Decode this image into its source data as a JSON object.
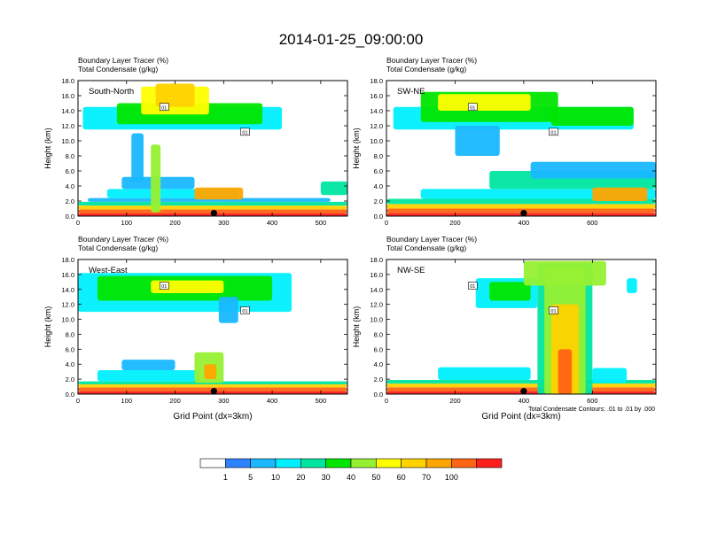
{
  "figure": {
    "title": "2014-01-25_09:00:00",
    "contour_note": "Total Condensate Contours: .01 to .01 by .000",
    "contour_label": "01"
  },
  "colorbar": {
    "labels": [
      "1",
      "5",
      "10",
      "20",
      "30",
      "40",
      "50",
      "60",
      "70",
      "100"
    ],
    "colors": [
      "#ffffff",
      "#2d82ff",
      "#19b8ff",
      "#00f0ff",
      "#00e6a0",
      "#00e600",
      "#96f032",
      "#ffff00",
      "#ffd200",
      "#ffa500",
      "#ff6414",
      "#ff1e1e"
    ]
  },
  "chart_data": [
    {
      "type": "heatmap",
      "name": "South-North",
      "title_line1": "Boundary Layer Tracer   (%)",
      "title_line2": "Total Condensate   (g/kg)",
      "xlabel": "",
      "ylabel": "Height (km)",
      "xlim": [
        0,
        555
      ],
      "ylim": [
        0,
        18
      ],
      "xticks": [
        "0",
        "100",
        "200",
        "300",
        "400",
        "500"
      ],
      "xtick_values": [
        0,
        100,
        200,
        300,
        400,
        500
      ],
      "yticks": [
        "0.0",
        "2.0",
        "4.0",
        "6.0",
        "8.0",
        "10.0",
        "12.0",
        "14.0",
        "16.0",
        "18.0"
      ],
      "ytick_values": [
        0,
        2,
        4,
        6,
        8,
        10,
        12,
        14,
        16,
        18
      ],
      "marker_x": 280,
      "layers": [
        {
          "x0": 0,
          "x1": 555,
          "z0": 0,
          "z1": 0.35,
          "level": 11
        },
        {
          "x0": 0,
          "x1": 555,
          "z0": 0.35,
          "z1": 0.9,
          "level": 10
        },
        {
          "x0": 0,
          "x1": 555,
          "z0": 0.9,
          "z1": 1.4,
          "level": 8
        },
        {
          "x0": 0,
          "x1": 555,
          "z0": 1.4,
          "z1": 1.9,
          "level": 4
        },
        {
          "x0": 20,
          "x1": 520,
          "z0": 1.9,
          "z1": 2.4,
          "level": 2
        },
        {
          "x0": 60,
          "x1": 330,
          "z0": 2.4,
          "z1": 3.6,
          "level": 3
        },
        {
          "x0": 90,
          "x1": 240,
          "z0": 3.6,
          "z1": 5.2,
          "level": 2
        },
        {
          "x0": 240,
          "x1": 340,
          "z0": 2.2,
          "z1": 3.8,
          "level": 9
        },
        {
          "x0": 150,
          "x1": 170,
          "z0": 0.5,
          "z1": 9.5,
          "level": 6
        },
        {
          "x0": 110,
          "x1": 135,
          "z0": 4.5,
          "z1": 11,
          "level": 2
        },
        {
          "x0": 500,
          "x1": 555,
          "z0": 2.8,
          "z1": 4.6,
          "level": 4
        },
        {
          "x0": 10,
          "x1": 420,
          "z0": 11.5,
          "z1": 14.5,
          "level": 3
        },
        {
          "x0": 80,
          "x1": 380,
          "z0": 12.2,
          "z1": 15.0,
          "level": 5
        },
        {
          "x0": 130,
          "x1": 270,
          "z0": 13.5,
          "z1": 17.2,
          "level": 7
        },
        {
          "x0": 160,
          "x1": 240,
          "z0": 14.5,
          "z1": 17.6,
          "level": 8
        }
      ]
    },
    {
      "type": "heatmap",
      "name": "SW-NE",
      "title_line1": "Boundary Layer Tracer   (%)",
      "title_line2": "Total Condensate   (g/kg)",
      "xlabel": "",
      "ylabel": "Height (km)",
      "xlim": [
        0,
        785
      ],
      "ylim": [
        0,
        18
      ],
      "xticks": [
        "0",
        "200",
        "400",
        "600"
      ],
      "xtick_values": [
        0,
        200,
        400,
        600
      ],
      "yticks": [
        "0.0",
        "2.0",
        "4.0",
        "6.0",
        "8.0",
        "10.0",
        "12.0",
        "14.0",
        "16.0",
        "18.0"
      ],
      "ytick_values": [
        0,
        2,
        4,
        6,
        8,
        10,
        12,
        14,
        16,
        18
      ],
      "marker_x": 400,
      "layers": [
        {
          "x0": 0,
          "x1": 785,
          "z0": 0,
          "z1": 0.4,
          "level": 11
        },
        {
          "x0": 0,
          "x1": 785,
          "z0": 0.4,
          "z1": 1.0,
          "level": 10
        },
        {
          "x0": 0,
          "x1": 785,
          "z0": 1.0,
          "z1": 1.6,
          "level": 8
        },
        {
          "x0": 0,
          "x1": 785,
          "z0": 1.6,
          "z1": 2.3,
          "level": 4
        },
        {
          "x0": 100,
          "x1": 785,
          "z0": 2.3,
          "z1": 3.6,
          "level": 3
        },
        {
          "x0": 300,
          "x1": 785,
          "z0": 3.6,
          "z1": 6.0,
          "level": 4
        },
        {
          "x0": 420,
          "x1": 785,
          "z0": 5.0,
          "z1": 7.2,
          "level": 2
        },
        {
          "x0": 600,
          "x1": 760,
          "z0": 2.0,
          "z1": 3.8,
          "level": 9
        },
        {
          "x0": 20,
          "x1": 720,
          "z0": 11.5,
          "z1": 14.5,
          "level": 3
        },
        {
          "x0": 100,
          "x1": 500,
          "z0": 12.5,
          "z1": 16.5,
          "level": 5
        },
        {
          "x0": 150,
          "x1": 420,
          "z0": 14.0,
          "z1": 16.2,
          "level": 7
        },
        {
          "x0": 480,
          "x1": 720,
          "z0": 12.0,
          "z1": 14.5,
          "level": 5
        },
        {
          "x0": 200,
          "x1": 330,
          "z0": 8.0,
          "z1": 12.0,
          "level": 2
        }
      ]
    },
    {
      "type": "heatmap",
      "name": "West-East",
      "title_line1": "Boundary Layer Tracer   (%)",
      "title_line2": "Total Condensate   (g/kg)",
      "xlabel": "Grid Point (dx=3km)",
      "ylabel": "Height (km)",
      "xlim": [
        0,
        555
      ],
      "ylim": [
        0,
        18
      ],
      "xticks": [
        "0",
        "100",
        "200",
        "300",
        "400",
        "500"
      ],
      "xtick_values": [
        0,
        100,
        200,
        300,
        400,
        500
      ],
      "yticks": [
        "0.0",
        "2.0",
        "4.0",
        "6.0",
        "8.0",
        "10.0",
        "12.0",
        "14.0",
        "16.0",
        "18.0"
      ],
      "ytick_values": [
        0,
        2,
        4,
        6,
        8,
        10,
        12,
        14,
        16,
        18
      ],
      "marker_x": 280,
      "layers": [
        {
          "x0": 0,
          "x1": 555,
          "z0": 0,
          "z1": 0.35,
          "level": 11
        },
        {
          "x0": 0,
          "x1": 555,
          "z0": 0.35,
          "z1": 0.9,
          "level": 10
        },
        {
          "x0": 0,
          "x1": 555,
          "z0": 0.9,
          "z1": 1.3,
          "level": 8
        },
        {
          "x0": 0,
          "x1": 555,
          "z0": 1.3,
          "z1": 1.7,
          "level": 4
        },
        {
          "x0": 40,
          "x1": 250,
          "z0": 1.7,
          "z1": 3.2,
          "level": 3
        },
        {
          "x0": 90,
          "x1": 200,
          "z0": 3.2,
          "z1": 4.6,
          "level": 2
        },
        {
          "x0": 240,
          "x1": 300,
          "z0": 1.5,
          "z1": 5.6,
          "level": 6
        },
        {
          "x0": 260,
          "x1": 285,
          "z0": 2.0,
          "z1": 4.0,
          "level": 9
        },
        {
          "x0": 0,
          "x1": 440,
          "z0": 11.0,
          "z1": 16.2,
          "level": 3
        },
        {
          "x0": 40,
          "x1": 400,
          "z0": 12.5,
          "z1": 15.8,
          "level": 5
        },
        {
          "x0": 150,
          "x1": 300,
          "z0": 13.5,
          "z1": 15.2,
          "level": 7
        },
        {
          "x0": 290,
          "x1": 330,
          "z0": 9.5,
          "z1": 13.0,
          "level": 2
        }
      ]
    },
    {
      "type": "heatmap",
      "name": "NW-SE",
      "title_line1": "Boundary Layer Tracer   (%)",
      "title_line2": "Total Condensate   (g/kg)",
      "xlabel": "Grid Point (dx=3km)",
      "ylabel": "Height (km)",
      "xlim": [
        0,
        785
      ],
      "ylim": [
        0,
        18
      ],
      "xticks": [
        "0",
        "200",
        "400",
        "600"
      ],
      "xtick_values": [
        0,
        200,
        400,
        600
      ],
      "yticks": [
        "0.0",
        "2.0",
        "4.0",
        "6.0",
        "8.0",
        "10.0",
        "12.0",
        "14.0",
        "16.0",
        "18.0"
      ],
      "ytick_values": [
        0,
        2,
        4,
        6,
        8,
        10,
        12,
        14,
        16,
        18
      ],
      "marker_x": 400,
      "layers": [
        {
          "x0": 0,
          "x1": 785,
          "z0": 0,
          "z1": 0.35,
          "level": 11
        },
        {
          "x0": 0,
          "x1": 785,
          "z0": 0.35,
          "z1": 0.9,
          "level": 10
        },
        {
          "x0": 0,
          "x1": 785,
          "z0": 0.9,
          "z1": 1.4,
          "level": 8
        },
        {
          "x0": 0,
          "x1": 785,
          "z0": 1.4,
          "z1": 1.9,
          "level": 4
        },
        {
          "x0": 150,
          "x1": 420,
          "z0": 1.9,
          "z1": 3.6,
          "level": 3
        },
        {
          "x0": 440,
          "x1": 600,
          "z0": 0,
          "z1": 17.5,
          "level": 4
        },
        {
          "x0": 460,
          "x1": 580,
          "z0": 0,
          "z1": 17.0,
          "level": 6
        },
        {
          "x0": 480,
          "x1": 560,
          "z0": 0,
          "z1": 12.0,
          "level": 8
        },
        {
          "x0": 500,
          "x1": 540,
          "z0": 0,
          "z1": 6.0,
          "level": 10
        },
        {
          "x0": 260,
          "x1": 440,
          "z0": 11.5,
          "z1": 15.5,
          "level": 3
        },
        {
          "x0": 300,
          "x1": 420,
          "z0": 12.5,
          "z1": 15.0,
          "level": 5
        },
        {
          "x0": 400,
          "x1": 640,
          "z0": 14.5,
          "z1": 17.8,
          "level": 6
        },
        {
          "x0": 700,
          "x1": 730,
          "z0": 13.5,
          "z1": 15.5,
          "level": 3
        },
        {
          "x0": 600,
          "x1": 700,
          "z0": 1.5,
          "z1": 3.5,
          "level": 3
        }
      ]
    }
  ]
}
